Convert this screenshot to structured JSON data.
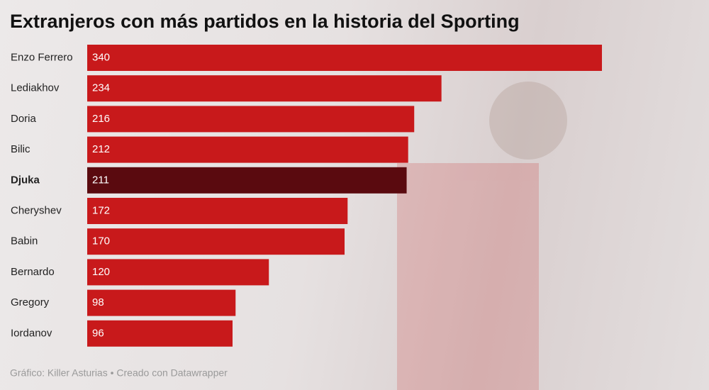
{
  "chart_data": {
    "type": "hbar",
    "title": "Extranjeros con más partidos en la historia del Sporting",
    "categories": [
      "Enzo Ferrero",
      "Lediakhov",
      "Doria",
      "Bilic",
      "Djuka",
      "Cheryshev",
      "Babin",
      "Bernardo",
      "Gregory",
      "Iordanov"
    ],
    "values": [
      340,
      234,
      216,
      212,
      211,
      172,
      170,
      120,
      98,
      96
    ],
    "color": "#c8191b",
    "highlight": {
      "index": 4,
      "color": "#5a0a0f"
    },
    "xlim": [
      0,
      340
    ],
    "source": "Gráfico: Killer Asturias • Creado con Datawrapper"
  }
}
